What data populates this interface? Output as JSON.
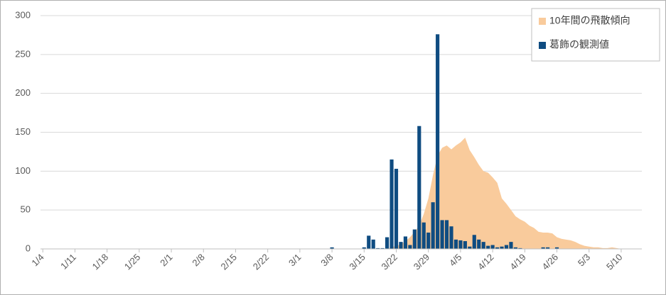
{
  "chart_data": {
    "type": "bar_area",
    "categories": [
      "1/4",
      null,
      null,
      null,
      null,
      null,
      null,
      "1/11",
      null,
      null,
      null,
      null,
      null,
      null,
      "1/18",
      null,
      null,
      null,
      null,
      null,
      null,
      "1/25",
      null,
      null,
      null,
      null,
      null,
      null,
      "2/1",
      null,
      null,
      null,
      null,
      null,
      null,
      "2/8",
      null,
      null,
      null,
      null,
      null,
      null,
      "2/15",
      null,
      null,
      null,
      null,
      null,
      null,
      "2/22",
      null,
      null,
      null,
      null,
      null,
      null,
      "3/1",
      null,
      null,
      null,
      null,
      null,
      null,
      "3/8",
      null,
      null,
      null,
      null,
      null,
      null,
      "3/15",
      null,
      null,
      null,
      null,
      null,
      null,
      "3/22",
      null,
      null,
      null,
      null,
      null,
      null,
      "3/29",
      null,
      null,
      null,
      null,
      null,
      null,
      "4/5",
      null,
      null,
      null,
      null,
      null,
      null,
      "4/12",
      null,
      null,
      null,
      null,
      null,
      null,
      "4/19",
      null,
      null,
      null,
      null,
      null,
      null,
      "4/26",
      null,
      null,
      null,
      null,
      null,
      null,
      "5/3",
      null,
      null,
      null,
      null,
      null,
      null,
      "5/10",
      null,
      null,
      null,
      null
    ],
    "series": [
      {
        "name": "10年間の飛散傾向",
        "color": "#f9cb9c",
        "kind": "area",
        "values": [
          0,
          0,
          0,
          0,
          0,
          0,
          0,
          0,
          0,
          0,
          0,
          0,
          0,
          0,
          0,
          0,
          0,
          0,
          0,
          0,
          0,
          0,
          0,
          0,
          0,
          0,
          0,
          0,
          0,
          0,
          0,
          0,
          0,
          0,
          0,
          0,
          0,
          0,
          0,
          0,
          0,
          0,
          0,
          0,
          0,
          0,
          0,
          0,
          0,
          0,
          0,
          0,
          0,
          0,
          0,
          0,
          0,
          0,
          0,
          0,
          0,
          0,
          0,
          0,
          0,
          0,
          0,
          0,
          0,
          0,
          0,
          0,
          0,
          0,
          0,
          0,
          2,
          4,
          6,
          10,
          15,
          22,
          30,
          45,
          65,
          95,
          120,
          130,
          133,
          128,
          133,
          137,
          143,
          127,
          118,
          108,
          100,
          98,
          92,
          85,
          65,
          58,
          50,
          42,
          38,
          35,
          30,
          27,
          22,
          21,
          21,
          20,
          15,
          13,
          12,
          11,
          9,
          6,
          4,
          3,
          2,
          2,
          1,
          1,
          2,
          1,
          0,
          0,
          0,
          0,
          0
        ]
      },
      {
        "name": "葛飾の観測値",
        "color": "#0f4c81",
        "kind": "bar",
        "values": [
          0,
          0,
          0,
          0,
          0,
          0,
          0,
          0,
          0,
          0,
          0,
          0,
          0,
          0,
          0,
          0,
          0,
          0,
          0,
          0,
          0,
          0,
          0,
          0,
          0,
          0,
          0,
          0,
          0,
          0,
          0,
          0,
          0,
          0,
          0,
          0,
          0,
          0,
          0,
          0,
          0,
          0,
          0,
          0,
          0,
          0,
          0,
          0,
          0,
          0,
          0,
          0,
          0,
          0,
          0,
          0,
          0,
          0,
          0,
          0,
          0,
          0,
          0,
          2,
          0,
          0,
          0,
          0,
          0,
          0,
          2,
          17,
          12,
          1,
          1,
          15,
          115,
          103,
          9,
          16,
          5,
          25,
          158,
          34,
          21,
          60,
          276,
          37,
          37,
          29,
          12,
          11,
          10,
          3,
          18,
          12,
          9,
          4,
          5,
          2,
          3,
          5,
          9,
          2,
          1,
          0,
          0,
          0,
          0,
          2,
          2,
          0,
          2,
          0,
          0,
          0,
          0,
          0,
          0,
          0,
          0,
          0,
          0,
          0,
          0,
          0,
          0,
          0,
          0,
          0,
          0
        ]
      }
    ],
    "ylim": [
      0,
      300
    ],
    "yticks": [
      0,
      50,
      100,
      150,
      200,
      250,
      300
    ],
    "grid": true,
    "legend": "upper right"
  }
}
